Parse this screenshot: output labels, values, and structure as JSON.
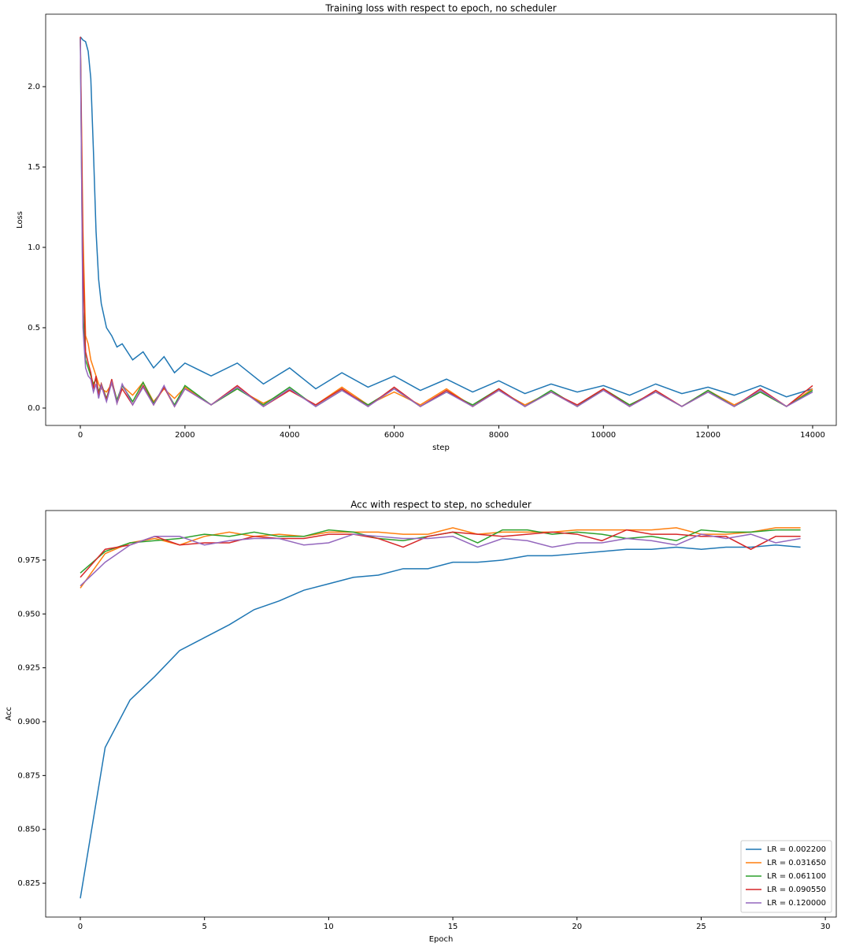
{
  "chart_data": [
    {
      "type": "line",
      "title": "Training loss with respect to epoch, no scheduler",
      "xlabel": "step",
      "ylabel": "Loss",
      "x": [
        0,
        50,
        100,
        150,
        200,
        250,
        300,
        350,
        400,
        500,
        600,
        700,
        800,
        1000,
        1200,
        1400,
        1600,
        1800,
        2000,
        2500,
        3000,
        3500,
        4000,
        4500,
        5000,
        5500,
        6000,
        6500,
        7000,
        7500,
        8000,
        8500,
        9000,
        9500,
        10000,
        10500,
        11000,
        11500,
        12000,
        12500,
        13000,
        13500,
        14000
      ],
      "xlim": [
        -663,
        14452
      ],
      "ylim": [
        -0.108,
        2.451
      ],
      "xticks": [
        0,
        2000,
        4000,
        6000,
        8000,
        10000,
        12000,
        14000
      ],
      "yticks": [
        {
          "value": 0,
          "label": "0.0"
        },
        0.5,
        {
          "value": 1,
          "label": "1.0"
        },
        1.5,
        {
          "value": 2,
          "label": "2.0"
        }
      ],
      "series": [
        {
          "name": "LR = 0.002200",
          "color": "#1f77b4",
          "values": [
            2.31,
            2.29,
            2.28,
            2.22,
            2.05,
            1.6,
            1.1,
            0.8,
            0.65,
            0.5,
            0.45,
            0.38,
            0.4,
            0.3,
            0.35,
            0.25,
            0.32,
            0.22,
            0.28,
            0.2,
            0.28,
            0.15,
            0.25,
            0.12,
            0.22,
            0.13,
            0.2,
            0.11,
            0.18,
            0.1,
            0.17,
            0.09,
            0.15,
            0.1,
            0.14,
            0.08,
            0.15,
            0.09,
            0.13,
            0.08,
            0.14,
            0.07,
            0.12
          ]
        },
        {
          "name": "LR = 0.031650",
          "color": "#ff7f0e",
          "values": [
            2.3,
            1.1,
            0.45,
            0.4,
            0.3,
            0.25,
            0.2,
            0.15,
            0.12,
            0.1,
            0.15,
            0.05,
            0.14,
            0.08,
            0.16,
            0.04,
            0.12,
            0.06,
            0.13,
            0.02,
            0.12,
            0.03,
            0.11,
            0.02,
            0.13,
            0.02,
            0.1,
            0.02,
            0.12,
            0.01,
            0.11,
            0.02,
            0.1,
            0.01,
            0.12,
            0.02,
            0.1,
            0.01,
            0.11,
            0.02,
            0.1,
            0.01,
            0.12
          ]
        },
        {
          "name": "LR = 0.061100",
          "color": "#2ca02c",
          "values": [
            2.3,
            0.6,
            0.3,
            0.25,
            0.2,
            0.15,
            0.18,
            0.1,
            0.15,
            0.06,
            0.17,
            0.05,
            0.14,
            0.04,
            0.16,
            0.03,
            0.13,
            0.02,
            0.14,
            0.02,
            0.12,
            0.02,
            0.13,
            0.01,
            0.11,
            0.02,
            0.12,
            0.01,
            0.1,
            0.02,
            0.12,
            0.01,
            0.11,
            0.01,
            0.12,
            0.02,
            0.1,
            0.01,
            0.11,
            0.01,
            0.1,
            0.01,
            0.11
          ]
        },
        {
          "name": "LR = 0.090550",
          "color": "#d62728",
          "values": [
            2.31,
            0.9,
            0.35,
            0.28,
            0.22,
            0.12,
            0.2,
            0.08,
            0.15,
            0.05,
            0.18,
            0.03,
            0.12,
            0.02,
            0.14,
            0.02,
            0.13,
            0.01,
            0.12,
            0.02,
            0.14,
            0.01,
            0.11,
            0.02,
            0.12,
            0.01,
            0.13,
            0.01,
            0.11,
            0.01,
            0.12,
            0.01,
            0.1,
            0.02,
            0.12,
            0.01,
            0.11,
            0.01,
            0.1,
            0.01,
            0.12,
            0.01,
            0.14
          ]
        },
        {
          "name": "LR = 0.120000",
          "color": "#9467bd",
          "values": [
            2.3,
            0.5,
            0.25,
            0.2,
            0.18,
            0.1,
            0.15,
            0.06,
            0.14,
            0.04,
            0.16,
            0.03,
            0.15,
            0.02,
            0.13,
            0.02,
            0.14,
            0.01,
            0.12,
            0.02,
            0.13,
            0.01,
            0.12,
            0.01,
            0.11,
            0.01,
            0.12,
            0.01,
            0.1,
            0.01,
            0.11,
            0.01,
            0.1,
            0.01,
            0.11,
            0.01,
            0.1,
            0.01,
            0.1,
            0.01,
            0.11,
            0.01,
            0.1
          ]
        }
      ]
    },
    {
      "type": "line",
      "title": "Acc with respect to step, no scheduler",
      "xlabel": "Epoch",
      "ylabel": "Acc",
      "x": [
        0,
        1,
        2,
        3,
        4,
        5,
        6,
        7,
        8,
        9,
        10,
        11,
        12,
        13,
        14,
        15,
        16,
        17,
        18,
        19,
        20,
        21,
        22,
        23,
        24,
        25,
        26,
        27,
        28,
        29
      ],
      "xlim": [
        -1.395,
        30.44
      ],
      "ylim": [
        0.8093,
        0.998
      ],
      "xticks": [
        0,
        5,
        10,
        15,
        20,
        25,
        30
      ],
      "yticks": [
        0.825,
        {
          "value": 0.85,
          "label": "0.850"
        },
        0.875,
        {
          "value": 0.9,
          "label": "0.900"
        },
        0.925,
        {
          "value": 0.95,
          "label": "0.950"
        },
        0.975
      ],
      "legend": "lower right",
      "series": [
        {
          "name": "LR = 0.002200",
          "color": "#1f77b4",
          "values": [
            0.818,
            0.888,
            0.91,
            0.921,
            0.933,
            0.939,
            0.945,
            0.952,
            0.956,
            0.961,
            0.964,
            0.967,
            0.968,
            0.971,
            0.971,
            0.974,
            0.974,
            0.975,
            0.977,
            0.977,
            0.978,
            0.979,
            0.98,
            0.98,
            0.981,
            0.98,
            0.981,
            0.981,
            0.982,
            0.981
          ]
        },
        {
          "name": "LR = 0.031650",
          "color": "#ff7f0e",
          "values": [
            0.962,
            0.978,
            0.983,
            0.985,
            0.982,
            0.986,
            0.988,
            0.986,
            0.987,
            0.986,
            0.988,
            0.988,
            0.988,
            0.987,
            0.987,
            0.99,
            0.987,
            0.988,
            0.988,
            0.988,
            0.989,
            0.989,
            0.989,
            0.989,
            0.99,
            0.987,
            0.987,
            0.988,
            0.99,
            0.99
          ]
        },
        {
          "name": "LR = 0.061100",
          "color": "#2ca02c",
          "values": [
            0.969,
            0.979,
            0.983,
            0.984,
            0.985,
            0.987,
            0.986,
            0.988,
            0.986,
            0.986,
            0.989,
            0.988,
            0.985,
            0.984,
            0.986,
            0.988,
            0.983,
            0.989,
            0.989,
            0.987,
            0.988,
            0.987,
            0.985,
            0.986,
            0.984,
            0.989,
            0.988,
            0.988,
            0.989,
            0.989
          ]
        },
        {
          "name": "LR = 0.090550",
          "color": "#d62728",
          "values": [
            0.967,
            0.98,
            0.982,
            0.986,
            0.982,
            0.983,
            0.983,
            0.986,
            0.985,
            0.985,
            0.987,
            0.987,
            0.985,
            0.981,
            0.986,
            0.988,
            0.987,
            0.986,
            0.987,
            0.988,
            0.987,
            0.984,
            0.989,
            0.987,
            0.987,
            0.986,
            0.986,
            0.98,
            0.986,
            0.986
          ]
        },
        {
          "name": "LR = 0.120000",
          "color": "#9467bd",
          "values": [
            0.963,
            0.974,
            0.982,
            0.986,
            0.986,
            0.982,
            0.984,
            0.985,
            0.985,
            0.982,
            0.983,
            0.987,
            0.986,
            0.985,
            0.985,
            0.986,
            0.981,
            0.985,
            0.984,
            0.981,
            0.983,
            0.983,
            0.985,
            0.984,
            0.982,
            0.987,
            0.985,
            0.987,
            0.983,
            0.985
          ]
        }
      ]
    }
  ]
}
